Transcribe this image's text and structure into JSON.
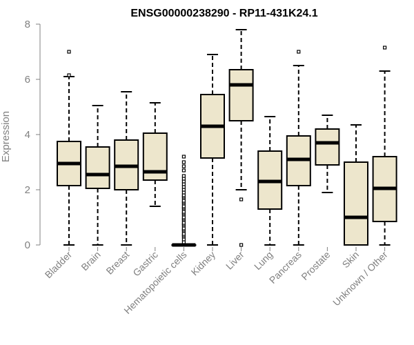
{
  "chart_data": {
    "type": "boxplot",
    "title": "ENSG00000238290 - RP11-431K24.1",
    "xlabel": "",
    "ylabel": "Expression",
    "ylim": [
      0,
      8
    ],
    "yticks": [
      0,
      2,
      4,
      6,
      8
    ],
    "grid": false,
    "box_color": "#ede6cc",
    "line_color": "#000000",
    "categories": [
      "Bladder",
      "Brain",
      "Breast",
      "Gastric",
      "Hematopoietic cells",
      "Kidney",
      "Liver",
      "Lung",
      "Pancreas",
      "Prostate",
      "Skin",
      "Unknown / Other"
    ],
    "boxes": [
      {
        "label": "Bladder",
        "min": 0,
        "q1": 2.15,
        "median": 2.95,
        "q3": 3.75,
        "max": 6.1,
        "outliers": [
          6.15,
          7.0
        ]
      },
      {
        "label": "Brain",
        "min": 0,
        "q1": 2.05,
        "median": 2.55,
        "q3": 3.55,
        "max": 5.05,
        "outliers": []
      },
      {
        "label": "Breast",
        "min": 0,
        "q1": 2.0,
        "median": 2.85,
        "q3": 3.8,
        "max": 5.55,
        "outliers": []
      },
      {
        "label": "Gastric",
        "min": 1.4,
        "q1": 2.35,
        "median": 2.65,
        "q3": 4.05,
        "max": 5.15,
        "outliers": []
      },
      {
        "label": "Hematopoietic cells",
        "min": 0,
        "q1": 0,
        "median": 0,
        "q3": 0,
        "max": 0,
        "outliers": [
          0.1,
          0.2,
          0.3,
          0.35,
          0.4,
          0.5,
          0.55,
          0.6,
          0.7,
          0.75,
          0.8,
          0.9,
          0.95,
          1.0,
          1.1,
          1.15,
          1.2,
          1.3,
          1.35,
          1.4,
          1.5,
          1.55,
          1.6,
          1.7,
          1.75,
          1.8,
          1.9,
          2.0,
          2.1,
          2.2,
          2.3,
          2.4,
          2.5,
          2.7,
          2.85,
          3.0,
          3.2
        ]
      },
      {
        "label": "Kidney",
        "min": 0,
        "q1": 3.15,
        "median": 4.3,
        "q3": 5.45,
        "max": 6.9,
        "outliers": []
      },
      {
        "label": "Liver",
        "min": 2.0,
        "q1": 4.5,
        "median": 5.8,
        "q3": 6.35,
        "max": 7.8,
        "outliers": [
          0,
          1.65
        ]
      },
      {
        "label": "Lung",
        "min": 0,
        "q1": 1.3,
        "median": 2.3,
        "q3": 3.4,
        "max": 4.65,
        "outliers": []
      },
      {
        "label": "Pancreas",
        "min": 0,
        "q1": 2.15,
        "median": 3.1,
        "q3": 3.95,
        "max": 6.5,
        "outliers": [
          7.0
        ]
      },
      {
        "label": "Prostate",
        "min": 1.9,
        "q1": 2.9,
        "median": 3.7,
        "q3": 4.2,
        "max": 4.7,
        "outliers": []
      },
      {
        "label": "Skin",
        "min": 0,
        "q1": 0,
        "median": 1.0,
        "q3": 3.0,
        "max": 4.35,
        "outliers": []
      },
      {
        "label": "Unknown / Other",
        "min": 0,
        "q1": 0.85,
        "median": 2.05,
        "q3": 3.2,
        "max": 6.3,
        "outliers": [
          7.15
        ]
      }
    ]
  }
}
